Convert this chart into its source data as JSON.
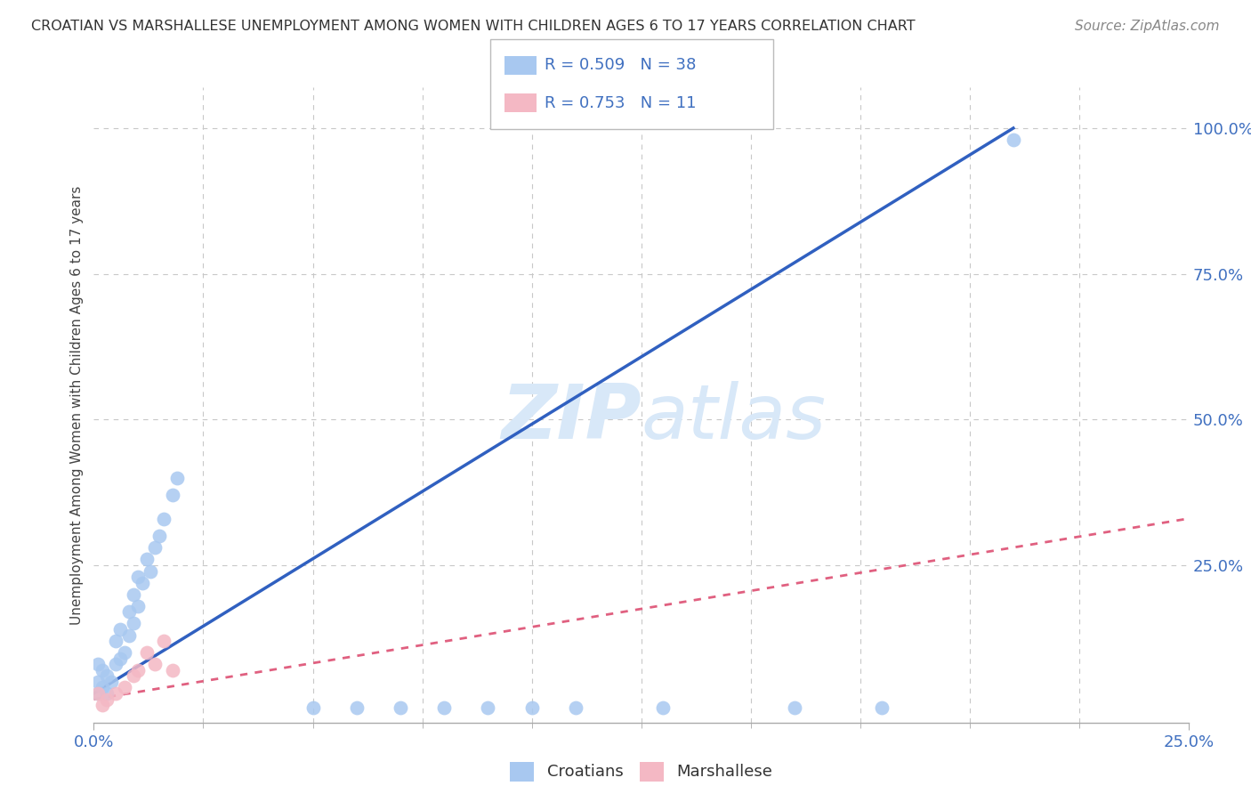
{
  "title": "CROATIAN VS MARSHALLESE UNEMPLOYMENT AMONG WOMEN WITH CHILDREN AGES 6 TO 17 YEARS CORRELATION CHART",
  "source": "Source: ZipAtlas.com",
  "ylabel": "Unemployment Among Women with Children Ages 6 to 17 years",
  "xlim": [
    0,
    0.25
  ],
  "ylim": [
    -0.02,
    1.07
  ],
  "croatian_r": "0.509",
  "croatian_n": "38",
  "marshallese_r": "0.753",
  "marshallese_n": "11",
  "croatian_color": "#a8c8f0",
  "marshallese_color": "#f4b8c4",
  "trend_croatian_color": "#3060c0",
  "trend_marshallese_color": "#e06080",
  "watermark": "ZIPatlas",
  "watermark_color": "#d8e8f8",
  "background_color": "#ffffff",
  "grid_color": "#c8c8c8",
  "tick_color": "#4070c0",
  "cr_x": [
    0.001,
    0.001,
    0.001,
    0.002,
    0.002,
    0.003,
    0.003,
    0.004,
    0.005,
    0.005,
    0.006,
    0.006,
    0.007,
    0.008,
    0.008,
    0.009,
    0.009,
    0.01,
    0.01,
    0.011,
    0.012,
    0.013,
    0.014,
    0.015,
    0.016,
    0.018,
    0.019,
    0.05,
    0.06,
    0.07,
    0.08,
    0.09,
    0.1,
    0.11,
    0.13,
    0.16,
    0.18,
    0.21
  ],
  "cr_y": [
    0.03,
    0.05,
    0.08,
    0.04,
    0.07,
    0.03,
    0.06,
    0.05,
    0.08,
    0.12,
    0.09,
    0.14,
    0.1,
    0.13,
    0.17,
    0.15,
    0.2,
    0.18,
    0.23,
    0.22,
    0.26,
    0.24,
    0.28,
    0.3,
    0.33,
    0.37,
    0.4,
    0.005,
    0.005,
    0.005,
    0.005,
    0.005,
    0.005,
    0.005,
    0.005,
    0.005,
    0.005,
    0.98
  ],
  "ma_x": [
    0.001,
    0.002,
    0.003,
    0.005,
    0.007,
    0.009,
    0.01,
    0.012,
    0.014,
    0.016,
    0.018
  ],
  "ma_y": [
    0.03,
    0.01,
    0.02,
    0.03,
    0.04,
    0.06,
    0.07,
    0.1,
    0.08,
    0.12,
    0.07
  ],
  "cr_trend_x": [
    0.0,
    0.21
  ],
  "cr_trend_y": [
    0.03,
    1.0
  ],
  "ma_trend_x": [
    0.0,
    0.25
  ],
  "ma_trend_y": [
    0.02,
    0.33
  ]
}
